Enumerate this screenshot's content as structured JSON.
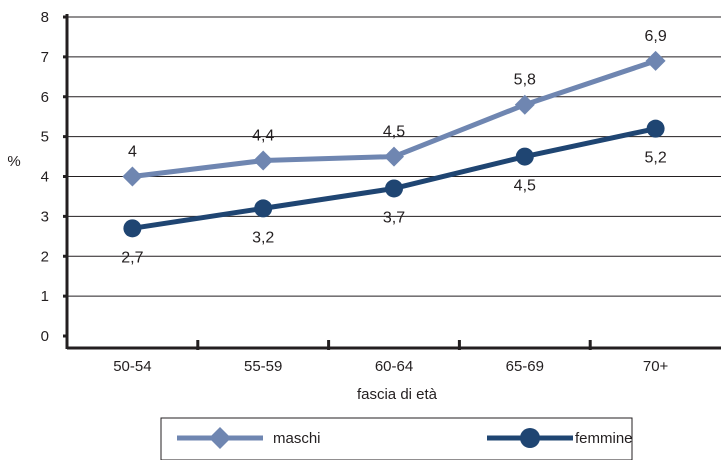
{
  "chart_data": {
    "type": "line",
    "categories": [
      "50-54",
      "55-59",
      "60-64",
      "65-69",
      "70+"
    ],
    "series": [
      {
        "name": "maschi",
        "values": [
          4.0,
          4.4,
          4.5,
          5.8,
          6.9
        ],
        "labels": [
          "4",
          "4,4",
          "4,5",
          "5,8",
          "6,9"
        ],
        "color": "#6f86b1",
        "marker": "diamond"
      },
      {
        "name": "femmine",
        "values": [
          2.7,
          3.2,
          3.7,
          4.5,
          5.2
        ],
        "labels": [
          "2,7",
          "3,2",
          "3,7",
          "4,5",
          "5,2"
        ],
        "color": "#1f4572",
        "marker": "circle"
      }
    ],
    "title": "",
    "xlabel": "fascia di età",
    "ylabel": "%",
    "ylim": [
      0,
      8
    ],
    "yticks": [
      "0",
      "1",
      "2",
      "3",
      "4",
      "5",
      "6",
      "7",
      "8"
    ],
    "grid": true,
    "legend": "bottom"
  }
}
